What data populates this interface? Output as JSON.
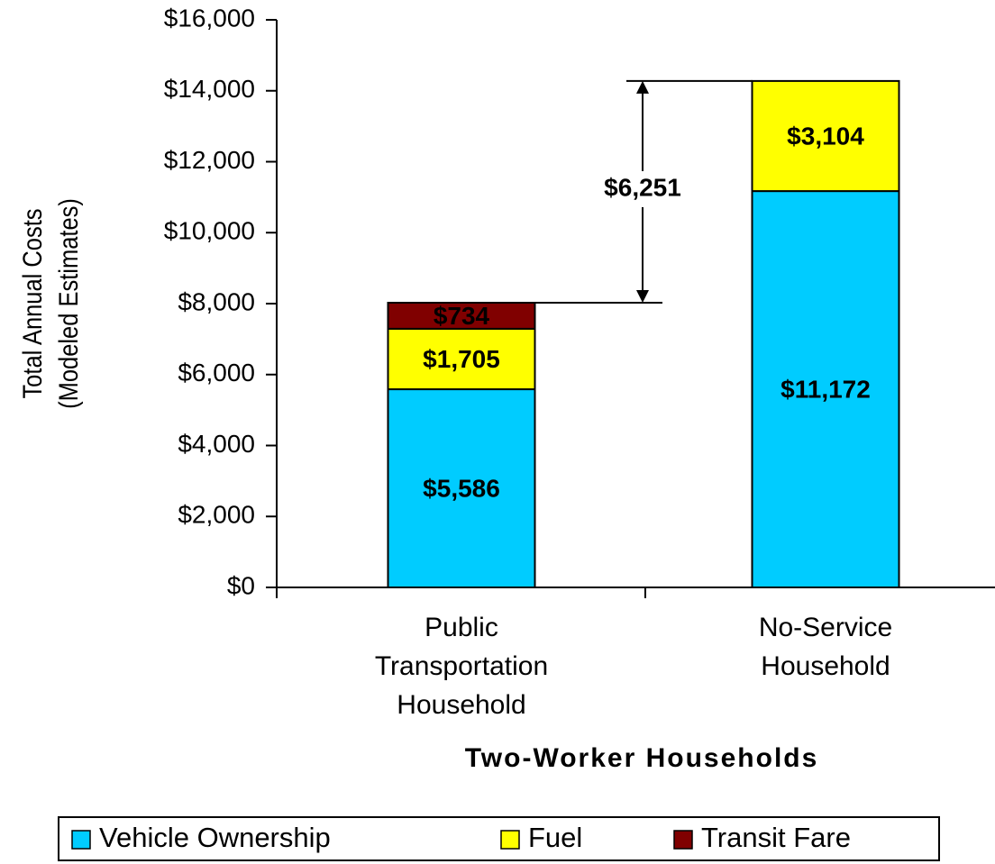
{
  "chart_data": {
    "type": "stacked_bar",
    "ylabel": [
      "Total Annual Costs",
      "(Modeled Estimates)"
    ],
    "xlabel": "Two-Worker Households",
    "categories": [
      "Public Transportation Household",
      "No-Service Household"
    ],
    "series": [
      {
        "name": "Vehicle Ownership",
        "color": "#00ccff",
        "values": [
          5586,
          11172
        ],
        "value_labels": [
          "$5,586",
          "$11,172"
        ],
        "label_color": "#000000"
      },
      {
        "name": "Fuel",
        "color": "#ffff00",
        "values": [
          1705,
          3104
        ],
        "value_labels": [
          "$1,705",
          "$3,104"
        ],
        "label_color": "#000000"
      },
      {
        "name": "Transit Fare",
        "color": "#800000",
        "values": [
          734,
          null
        ],
        "value_labels": [
          "$734",
          null
        ],
        "label_color": "#ffffff"
      }
    ],
    "annotation": "$6,251",
    "ylim": [
      0,
      16000
    ],
    "yticks": [
      {
        "value": 0,
        "label": "$0"
      },
      {
        "value": 2000,
        "label": "$2,000"
      },
      {
        "value": 4000,
        "label": "$4,000"
      },
      {
        "value": 6000,
        "label": "$6,000"
      },
      {
        "value": 8000,
        "label": "$8,000"
      },
      {
        "value": 10000,
        "label": "$10,000"
      },
      {
        "value": 12000,
        "label": "$12,000"
      },
      {
        "value": 14000,
        "label": "$14,000"
      },
      {
        "value": 16000,
        "label": "$16,000"
      }
    ],
    "legend": "bottom"
  }
}
